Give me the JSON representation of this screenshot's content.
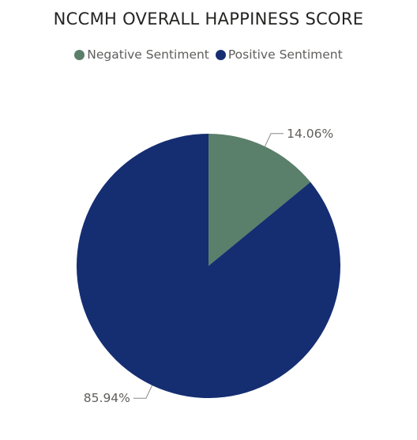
{
  "chart_data": {
    "type": "pie",
    "title": "NCCMH OVERALL HAPPINESS SCORE",
    "legend_position": "top-center",
    "slices": [
      {
        "name": "Negative Sentiment",
        "value": 14.06,
        "label": "14.06%",
        "color": "#5a7f6a"
      },
      {
        "name": "Positive Sentiment",
        "value": 85.94,
        "label": "85.94%",
        "color": "#152e72"
      }
    ]
  }
}
